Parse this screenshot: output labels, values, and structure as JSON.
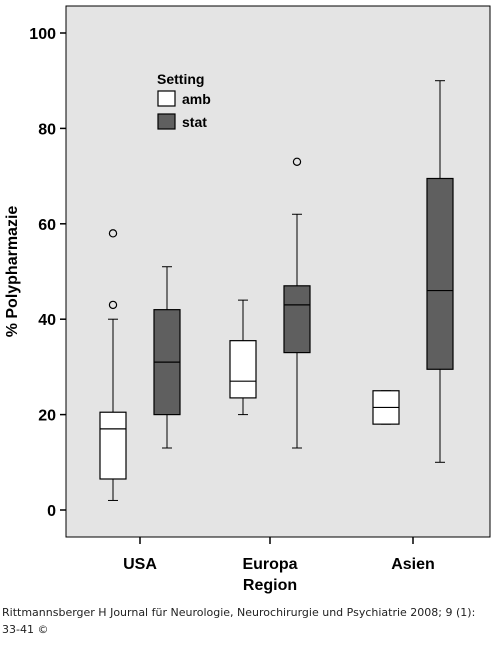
{
  "chart_data": {
    "type": "boxplot",
    "ylabel": "% Polypharmazie",
    "xlabel": "Region",
    "ylim": [
      0,
      105
    ],
    "yticks": [
      0,
      20,
      40,
      60,
      80,
      100
    ],
    "categories": [
      "USA",
      "Europa",
      "Asien"
    ],
    "legend": {
      "title": "Setting",
      "placement": "top-left"
    },
    "series": [
      {
        "name": "amb",
        "color": "#ffffff",
        "boxes": [
          {
            "whisker_low": 2,
            "q1": 6.5,
            "median": 17,
            "q3": 20.5,
            "whisker_high": 40,
            "outliers": [
              43,
              58
            ]
          },
          {
            "whisker_low": 20,
            "q1": 23.5,
            "median": 27,
            "q3": 35.5,
            "whisker_high": 44,
            "outliers": []
          },
          {
            "whisker_low": 18,
            "q1": 18,
            "median": 21.5,
            "q3": 25,
            "whisker_high": 25,
            "outliers": []
          }
        ]
      },
      {
        "name": "stat",
        "color": "#5f5f5f",
        "boxes": [
          {
            "whisker_low": 13,
            "q1": 20,
            "median": 31,
            "q3": 42,
            "whisker_high": 51,
            "outliers": []
          },
          {
            "whisker_low": 13,
            "q1": 33,
            "median": 43,
            "q3": 47,
            "whisker_high": 62,
            "outliers": [
              73
            ]
          },
          {
            "whisker_low": 10,
            "q1": 29.5,
            "median": 46,
            "q3": 69.5,
            "whisker_high": 90,
            "outliers": []
          }
        ]
      }
    ],
    "plot_background": "#e4e4e4",
    "grid": false
  },
  "caption": "Rittmannsberger H Journal für Neurologie, Neurochirurgie und Psychiatrie 2008; 9 (1): 33-41 ©"
}
